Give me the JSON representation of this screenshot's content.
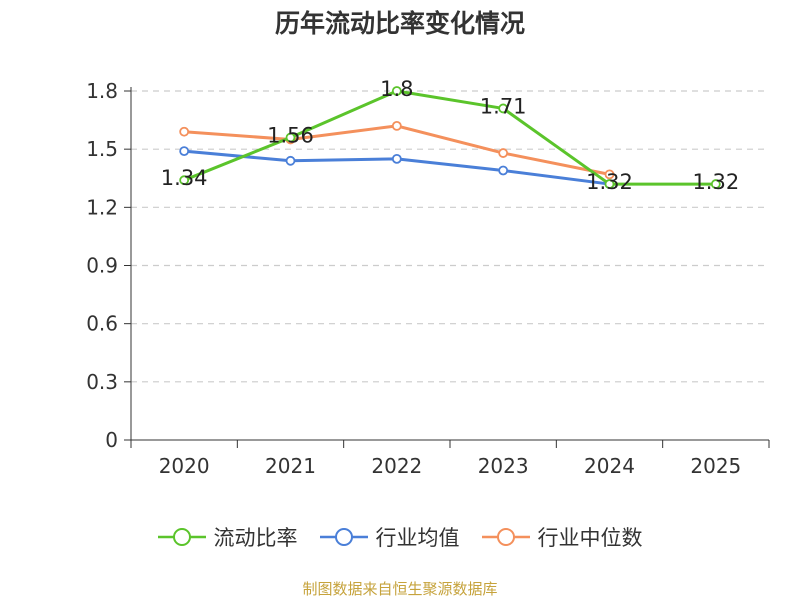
{
  "chart_data": {
    "type": "line",
    "title": "历年流动比率变化情况",
    "categories": [
      "2020",
      "2021",
      "2022",
      "2023",
      "2024",
      "2025"
    ],
    "series": [
      {
        "name": "流动比率",
        "color": "#5bc42b",
        "values": [
          1.34,
          1.56,
          1.8,
          1.71,
          1.32,
          1.32
        ],
        "labels": [
          "1.34",
          "1.56",
          "1.8",
          "1.71",
          "1.32",
          "1.32"
        ]
      },
      {
        "name": "行业均值",
        "color": "#4a7fd8",
        "values": [
          1.49,
          1.44,
          1.45,
          1.39,
          1.32,
          null
        ]
      },
      {
        "name": "行业中位数",
        "color": "#f4905c",
        "values": [
          1.59,
          1.55,
          1.62,
          1.48,
          1.37,
          null
        ]
      }
    ],
    "yticks": [
      "0",
      "0.3",
      "0.6",
      "0.9",
      "1.2",
      "1.5",
      "1.8"
    ],
    "ylim": [
      0,
      1.8
    ],
    "grid": true,
    "legend_position": "bottom"
  },
  "source_note": "制图数据来自恒生聚源数据库"
}
